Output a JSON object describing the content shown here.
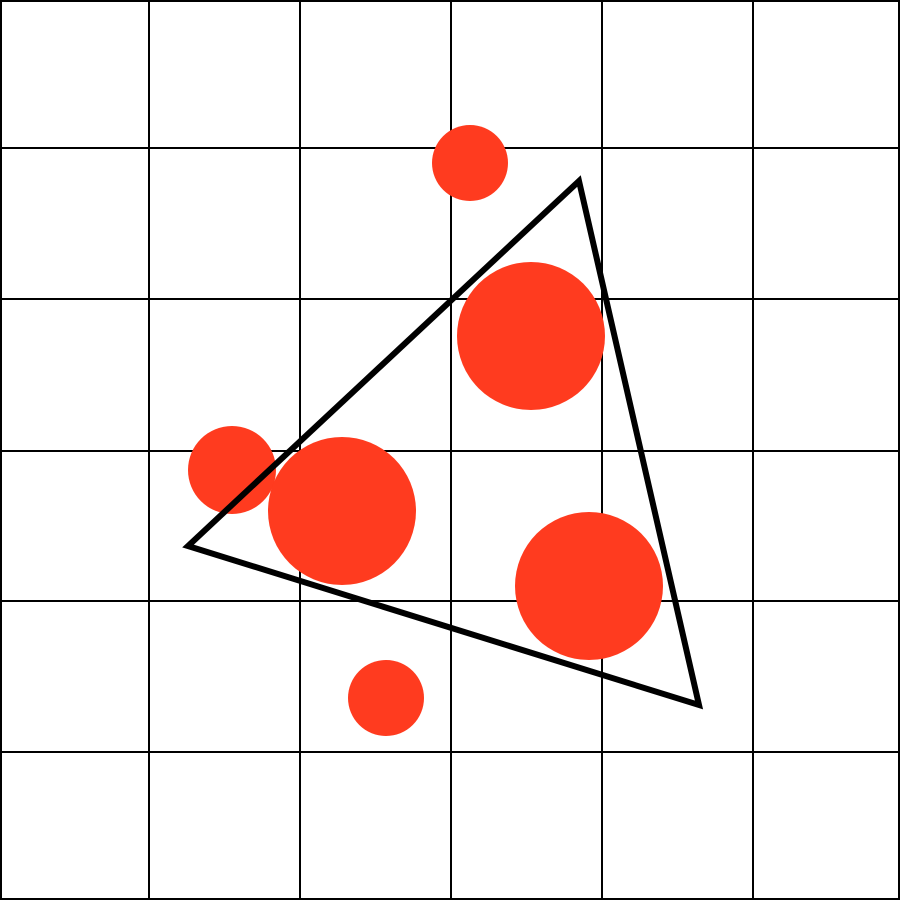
{
  "colors": {
    "background": "#ffffff",
    "grid": "#000000",
    "triangle_stroke": "#000000",
    "dot_fill": "#ff3b1f"
  },
  "grid": {
    "columns": 6,
    "rows": 6
  },
  "shapes": {
    "triangle_count": 1,
    "dot_count": 6
  }
}
